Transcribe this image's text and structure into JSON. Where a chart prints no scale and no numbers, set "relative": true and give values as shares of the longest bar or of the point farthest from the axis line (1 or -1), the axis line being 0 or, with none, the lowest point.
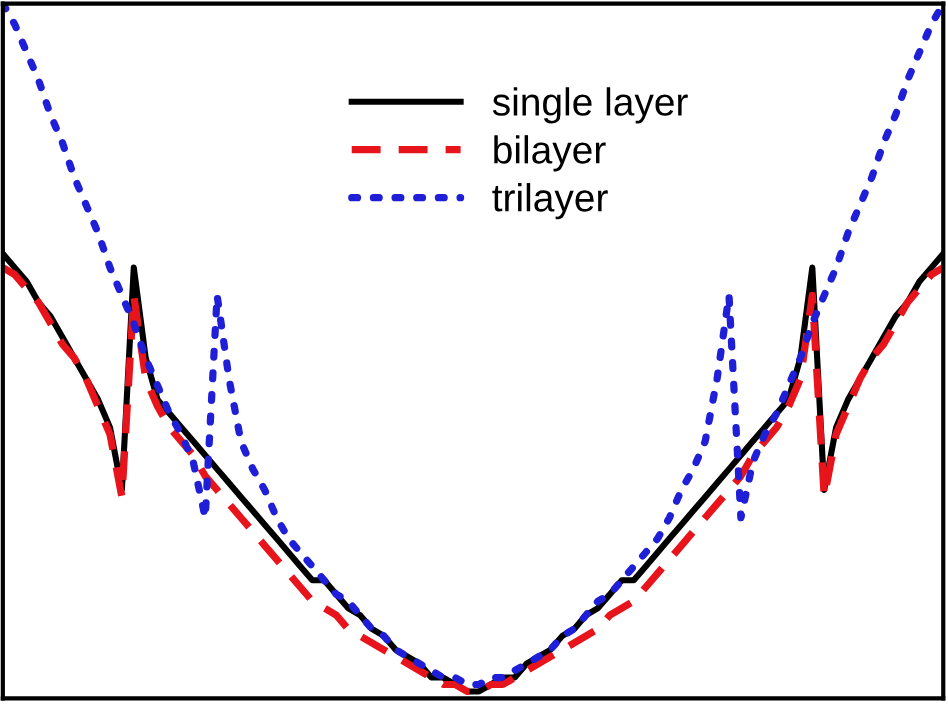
{
  "chart_data": {
    "type": "line",
    "relative": true,
    "legend": "top",
    "grid": false,
    "categories": [
      null,
      null,
      null,
      null,
      null,
      null,
      null,
      null,
      null,
      null,
      null,
      null,
      null,
      null,
      null,
      null,
      null,
      null,
      null,
      null,
      null,
      null,
      null,
      null,
      null,
      null,
      null,
      null,
      null,
      null,
      null,
      null,
      null,
      null,
      null,
      null,
      null,
      null,
      null,
      null,
      null,
      null,
      null,
      null,
      null,
      null,
      null,
      null,
      null,
      null,
      null,
      null,
      null,
      null,
      null,
      null,
      null,
      null,
      null,
      null,
      null,
      null,
      null,
      null,
      null,
      null,
      null,
      null,
      null,
      null,
      null,
      null,
      null,
      null,
      null,
      null,
      null,
      null,
      null,
      null
    ],
    "series": [
      {
        "name": "single layer",
        "color": "#000000",
        "line_style": "solid",
        "values": [
          0.64,
          0.62,
          0.6,
          0.57,
          0.55,
          0.52,
          0.49,
          0.46,
          0.43,
          0.39,
          0.3,
          0.62,
          0.49,
          0.43,
          0.41,
          0.39,
          0.37,
          0.35,
          0.33,
          0.31,
          0.29,
          0.27,
          0.25,
          0.23,
          0.21,
          0.19,
          0.17,
          0.17,
          0.15,
          0.13,
          0.12,
          0.1,
          0.09,
          0.07,
          0.06,
          0.05,
          0.03,
          0.03,
          0.02,
          0.01,
          0.01,
          0.02,
          0.03,
          0.03,
          0.05,
          0.06,
          0.07,
          0.09,
          0.1,
          0.12,
          0.13,
          0.15,
          0.17,
          0.17,
          0.19,
          0.21,
          0.23,
          0.25,
          0.27,
          0.29,
          0.31,
          0.33,
          0.35,
          0.37,
          0.39,
          0.41,
          0.43,
          0.49,
          0.62,
          0.3,
          0.39,
          0.43,
          0.46,
          0.49,
          0.52,
          0.55,
          0.57,
          0.6,
          0.62,
          0.64
        ]
      },
      {
        "name": "bilayer",
        "color": "#e8141b",
        "line_style": "dashed",
        "values": [
          0.62,
          0.61,
          0.59,
          0.57,
          0.54,
          0.51,
          0.49,
          0.46,
          0.42,
          0.38,
          0.29,
          0.58,
          0.46,
          0.42,
          0.39,
          0.37,
          0.35,
          0.32,
          0.3,
          0.28,
          0.26,
          0.24,
          0.22,
          0.2,
          0.18,
          0.16,
          0.14,
          0.13,
          0.12,
          0.1,
          0.09,
          0.08,
          0.07,
          0.06,
          0.05,
          0.04,
          0.03,
          0.02,
          0.02,
          0.01,
          0.01,
          0.02,
          0.02,
          0.03,
          0.04,
          0.05,
          0.06,
          0.07,
          0.08,
          0.09,
          0.1,
          0.12,
          0.13,
          0.14,
          0.16,
          0.18,
          0.2,
          0.22,
          0.24,
          0.26,
          0.28,
          0.3,
          0.32,
          0.35,
          0.37,
          0.39,
          0.42,
          0.46,
          0.58,
          0.29,
          0.38,
          0.42,
          0.46,
          0.49,
          0.51,
          0.54,
          0.57,
          0.59,
          0.61,
          0.62
        ]
      },
      {
        "name": "trilayer",
        "color": "#1f1fd8",
        "line_style": "dotted",
        "values": [
          1.0,
          0.97,
          0.93,
          0.89,
          0.84,
          0.8,
          0.75,
          0.71,
          0.67,
          0.62,
          0.58,
          0.54,
          0.49,
          0.45,
          0.41,
          0.38,
          0.34,
          0.26,
          0.58,
          0.46,
          0.37,
          0.33,
          0.3,
          0.26,
          0.23,
          0.21,
          0.19,
          0.17,
          0.15,
          0.14,
          0.12,
          0.1,
          0.09,
          0.07,
          0.06,
          0.05,
          0.04,
          0.03,
          0.03,
          0.02,
          0.02,
          0.03,
          0.03,
          0.04,
          0.05,
          0.06,
          0.07,
          0.09,
          0.1,
          0.12,
          0.14,
          0.15,
          0.17,
          0.19,
          0.21,
          0.23,
          0.26,
          0.3,
          0.33,
          0.37,
          0.46,
          0.58,
          0.26,
          0.34,
          0.38,
          0.41,
          0.45,
          0.49,
          0.54,
          0.58,
          0.62,
          0.67,
          0.71,
          0.75,
          0.8,
          0.84,
          0.89,
          0.93,
          0.97,
          1.0
        ]
      }
    ]
  }
}
